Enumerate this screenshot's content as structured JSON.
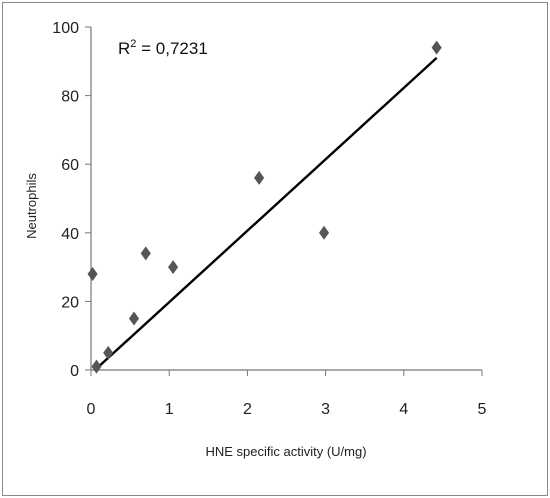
{
  "chart_data": {
    "type": "scatter",
    "xlabel": "HNE specific activity (U/mg)",
    "ylabel": "Neutrophils",
    "xlim": [
      0,
      5
    ],
    "ylim": [
      0,
      100
    ],
    "x_ticks": [
      "0",
      "1",
      "2",
      "3",
      "4",
      "5"
    ],
    "y_ticks": [
      "0",
      "20",
      "40",
      "60",
      "80",
      "100"
    ],
    "points": [
      {
        "x": 0.02,
        "y": 28
      },
      {
        "x": 0.07,
        "y": 1
      },
      {
        "x": 0.22,
        "y": 5
      },
      {
        "x": 0.55,
        "y": 15
      },
      {
        "x": 0.7,
        "y": 34
      },
      {
        "x": 1.05,
        "y": 30
      },
      {
        "x": 2.15,
        "y": 56
      },
      {
        "x": 2.98,
        "y": 40
      },
      {
        "x": 4.42,
        "y": 94
      }
    ],
    "trendline": {
      "x_start": 0.05,
      "y_start": 0,
      "x_end": 4.42,
      "y_end": 91
    },
    "annotation": {
      "prefix": "R",
      "sup": "2",
      "value": " = 0,7231"
    },
    "marker_color": "#555555",
    "line_color": "#000000",
    "grid": false,
    "legend": "none"
  }
}
